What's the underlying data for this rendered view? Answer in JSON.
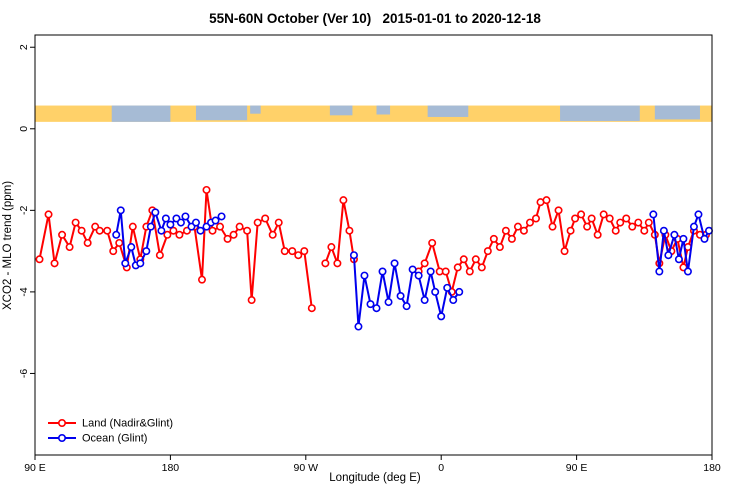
{
  "chart_data": {
    "type": "line",
    "title": "55N-60N October (Ver 10)   2015-01-01 to 2020-12-18",
    "xlabel": "Longitude (deg E)",
    "ylabel": "XCO2 - MLO trend (ppm)",
    "xlim": [
      0,
      450
    ],
    "ylim": [
      -8,
      2.3
    ],
    "grid": false,
    "legend_position": "bottom-left",
    "x_ticks": [
      {
        "pos": 0,
        "label": "90 E"
      },
      {
        "pos": 90,
        "label": "180"
      },
      {
        "pos": 180,
        "label": "90 W"
      },
      {
        "pos": 270,
        "label": "0"
      },
      {
        "pos": 360,
        "label": "90 E"
      },
      {
        "pos": 450,
        "label": "180"
      }
    ],
    "y_ticks": [
      {
        "pos": 2,
        "label": "2"
      },
      {
        "pos": 0,
        "label": "0"
      },
      {
        "pos": -2,
        "label": "-2"
      },
      {
        "pos": -4,
        "label": "-4"
      },
      {
        "pos": -6,
        "label": "-6"
      }
    ],
    "map_strip": {
      "base_color": "#FFD169",
      "patch_color": "#A6BBD5",
      "y_range": [
        0.17,
        0.57
      ],
      "patches": [
        [
          51,
          90,
          1
        ],
        [
          107,
          141,
          0.9
        ],
        [
          143,
          150,
          0.5
        ],
        [
          196,
          211,
          0.6
        ],
        [
          227,
          236,
          0.55
        ],
        [
          261,
          288,
          0.7
        ],
        [
          349,
          402,
          0.95
        ],
        [
          412,
          442,
          0.85
        ]
      ]
    },
    "series": [
      {
        "name": "Land (Nadir&Glint)",
        "color": "#FF0000",
        "marker": "open-circle",
        "segments": [
          [
            [
              3,
              -3.2
            ],
            [
              9,
              -2.1
            ],
            [
              13,
              -3.3
            ],
            [
              18,
              -2.6
            ],
            [
              23,
              -2.9
            ],
            [
              27,
              -2.3
            ],
            [
              31,
              -2.5
            ],
            [
              35,
              -2.8
            ],
            [
              40,
              -2.4
            ],
            [
              43,
              -2.5
            ],
            [
              48,
              -2.5
            ],
            [
              52,
              -3.0
            ],
            [
              56,
              -2.8
            ],
            [
              61,
              -3.4
            ],
            [
              65,
              -2.4
            ],
            [
              70,
              -3.2
            ],
            [
              74,
              -2.4
            ],
            [
              78,
              -2.0
            ],
            [
              83,
              -3.1
            ],
            [
              88,
              -2.6
            ],
            [
              92,
              -2.5
            ],
            [
              96,
              -2.6
            ],
            [
              101,
              -2.5
            ],
            [
              106,
              -2.4
            ],
            [
              111,
              -3.7
            ],
            [
              114,
              -1.5
            ],
            [
              118,
              -2.5
            ],
            [
              123,
              -2.4
            ],
            [
              128,
              -2.7
            ],
            [
              132,
              -2.6
            ],
            [
              136,
              -2.4
            ],
            [
              141,
              -2.5
            ],
            [
              144,
              -4.2
            ],
            [
              148,
              -2.3
            ],
            [
              153,
              -2.2
            ],
            [
              158,
              -2.6
            ],
            [
              162,
              -2.3
            ],
            [
              166,
              -3.0
            ],
            [
              171,
              -3.0
            ],
            [
              175,
              -3.1
            ],
            [
              179,
              -3.0
            ],
            [
              184,
              -4.4
            ]
          ],
          [
            [
              193,
              -3.3
            ],
            [
              197,
              -2.9
            ],
            [
              201,
              -3.3
            ],
            [
              205,
              -1.75
            ],
            [
              209,
              -2.5
            ],
            [
              212,
              -3.2
            ]
          ],
          [
            [
              255,
              -3.5
            ],
            [
              259,
              -3.3
            ],
            [
              264,
              -2.8
            ],
            [
              269,
              -3.5
            ],
            [
              273,
              -3.5
            ],
            [
              277,
              -4.0
            ],
            [
              281,
              -3.4
            ],
            [
              285,
              -3.2
            ],
            [
              289,
              -3.5
            ],
            [
              293,
              -3.2
            ],
            [
              297,
              -3.4
            ],
            [
              301,
              -3.0
            ],
            [
              305,
              -2.7
            ],
            [
              309,
              -2.9
            ],
            [
              313,
              -2.5
            ],
            [
              317,
              -2.7
            ],
            [
              321,
              -2.4
            ],
            [
              325,
              -2.5
            ],
            [
              329,
              -2.3
            ],
            [
              333,
              -2.2
            ],
            [
              336,
              -1.8
            ],
            [
              340,
              -1.75
            ],
            [
              344,
              -2.4
            ],
            [
              348,
              -2.0
            ],
            [
              352,
              -3.0
            ],
            [
              356,
              -2.5
            ],
            [
              359,
              -2.2
            ],
            [
              363,
              -2.1
            ],
            [
              367,
              -2.4
            ],
            [
              370,
              -2.2
            ],
            [
              374,
              -2.6
            ],
            [
              378,
              -2.1
            ],
            [
              382,
              -2.2
            ],
            [
              386,
              -2.5
            ],
            [
              389,
              -2.3
            ],
            [
              393,
              -2.2
            ],
            [
              397,
              -2.4
            ],
            [
              401,
              -2.3
            ],
            [
              405,
              -2.5
            ],
            [
              408,
              -2.3
            ],
            [
              412,
              -2.6
            ],
            [
              415,
              -3.3
            ],
            [
              419,
              -2.6
            ],
            [
              423,
              -3.0
            ],
            [
              427,
              -2.7
            ],
            [
              431,
              -3.4
            ],
            [
              434,
              -2.9
            ],
            [
              438,
              -2.5
            ],
            [
              442,
              -2.6
            ],
            [
              446,
              -2.6
            ]
          ]
        ]
      },
      {
        "name": "Ocean (Glint)",
        "color": "#0000EE",
        "marker": "open-circle",
        "segments": [
          [
            [
              54,
              -2.6
            ],
            [
              57,
              -2.0
            ],
            [
              60,
              -3.3
            ],
            [
              64,
              -2.9
            ],
            [
              67,
              -3.35
            ],
            [
              70,
              -3.3
            ],
            [
              74,
              -3.0
            ],
            [
              77,
              -2.4
            ],
            [
              80,
              -2.05
            ],
            [
              84,
              -2.5
            ],
            [
              87,
              -2.2
            ],
            [
              90,
              -2.35
            ],
            [
              94,
              -2.2
            ],
            [
              97,
              -2.3
            ],
            [
              100,
              -2.15
            ],
            [
              104,
              -2.4
            ],
            [
              107,
              -2.3
            ],
            [
              110,
              -2.5
            ],
            [
              114,
              -2.4
            ],
            [
              117,
              -2.3
            ],
            [
              120,
              -2.25
            ],
            [
              124,
              -2.15
            ]
          ],
          [
            [
              212,
              -3.1
            ],
            [
              215,
              -4.85
            ],
            [
              219,
              -3.6
            ],
            [
              223,
              -4.3
            ],
            [
              227,
              -4.4
            ],
            [
              231,
              -3.5
            ],
            [
              235,
              -4.25
            ],
            [
              239,
              -3.3
            ],
            [
              243,
              -4.1
            ],
            [
              247,
              -4.35
            ],
            [
              251,
              -3.45
            ],
            [
              255,
              -3.6
            ],
            [
              259,
              -4.2
            ],
            [
              263,
              -3.5
            ],
            [
              266,
              -4.0
            ],
            [
              270,
              -4.6
            ],
            [
              274,
              -3.9
            ],
            [
              278,
              -4.2
            ],
            [
              282,
              -4.0
            ]
          ],
          [
            [
              411,
              -2.1
            ],
            [
              415,
              -3.5
            ],
            [
              418,
              -2.5
            ],
            [
              421,
              -3.1
            ],
            [
              425,
              -2.6
            ],
            [
              428,
              -3.2
            ],
            [
              431,
              -2.7
            ],
            [
              434,
              -3.5
            ],
            [
              438,
              -2.4
            ],
            [
              441,
              -2.1
            ],
            [
              445,
              -2.7
            ],
            [
              448,
              -2.5
            ]
          ]
        ]
      }
    ]
  }
}
